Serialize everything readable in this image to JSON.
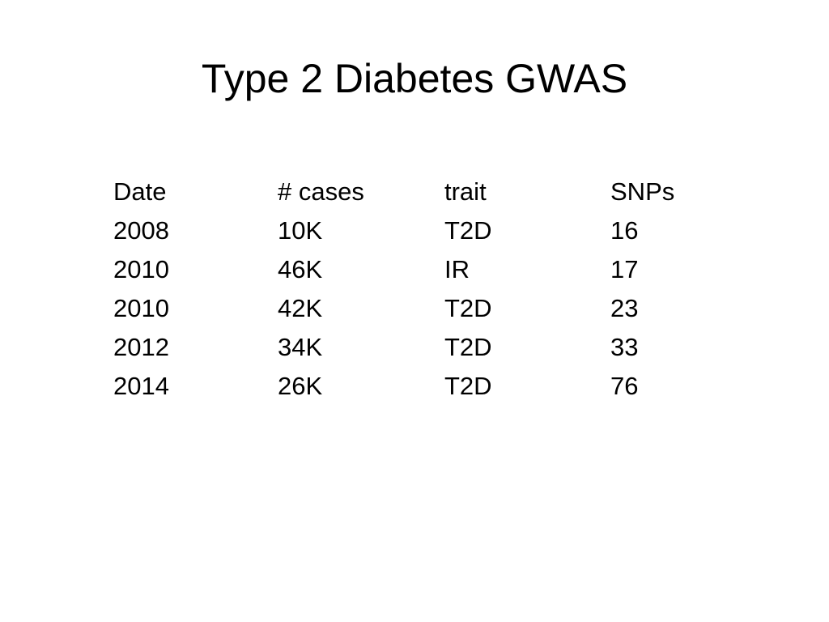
{
  "slide": {
    "title": "Type 2 Diabetes GWAS"
  },
  "table": {
    "headers": [
      "Date",
      "# cases",
      "trait",
      "SNPs"
    ],
    "rows": [
      [
        "2008",
        "10K",
        "T2D",
        "16"
      ],
      [
        "2010",
        "46K",
        "IR",
        "17"
      ],
      [
        "2010",
        "42K",
        "T2D",
        "23"
      ],
      [
        "2012",
        "34K",
        "T2D",
        "33"
      ],
      [
        "2014",
        "26K",
        "T2D",
        "76"
      ]
    ]
  }
}
